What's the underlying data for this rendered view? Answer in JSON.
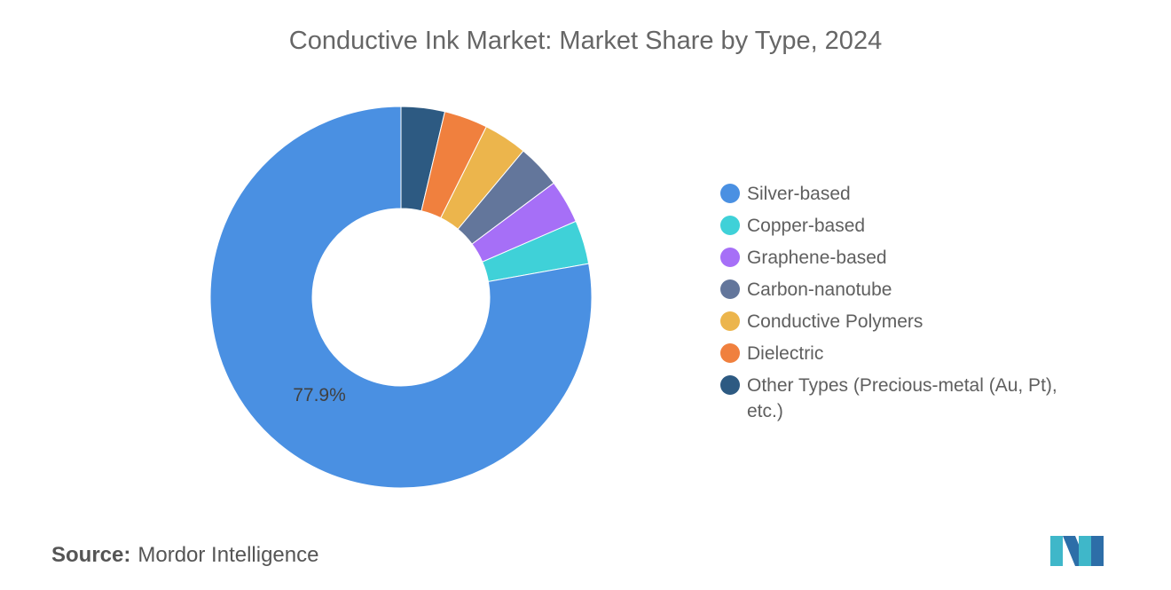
{
  "title": "Conductive Ink Market: Market Share by Type, 2024",
  "source": {
    "key": "Source:",
    "value": "Mordor Intelligence"
  },
  "chart_data": {
    "type": "pie",
    "donut": true,
    "title": "Conductive Ink Market: Market Share by Type, 2024",
    "legend_placement": "right",
    "series": [
      {
        "name": "Silver-based",
        "value": 77.9,
        "color": "#4a90e2",
        "label": "77.9%"
      },
      {
        "name": "Copper-based",
        "value": 3.7,
        "color": "#3fd1d8"
      },
      {
        "name": "Graphene-based",
        "value": 3.7,
        "color": "#a66ff7"
      },
      {
        "name": "Carbon-nanotube",
        "value": 3.7,
        "color": "#63769b"
      },
      {
        "name": "Conductive Polymers",
        "value": 3.7,
        "color": "#ecb54c"
      },
      {
        "name": "Dielectric",
        "value": 3.7,
        "color": "#f0803e"
      },
      {
        "name": "Other Types (Precious-metal (Au, Pt), etc.)",
        "value": 3.7,
        "color": "#2d5a82"
      }
    ]
  },
  "logo": {
    "icon": "mordor-intelligence-logo-icon",
    "colors": [
      "#3fb7c9",
      "#2d6ea8"
    ]
  }
}
